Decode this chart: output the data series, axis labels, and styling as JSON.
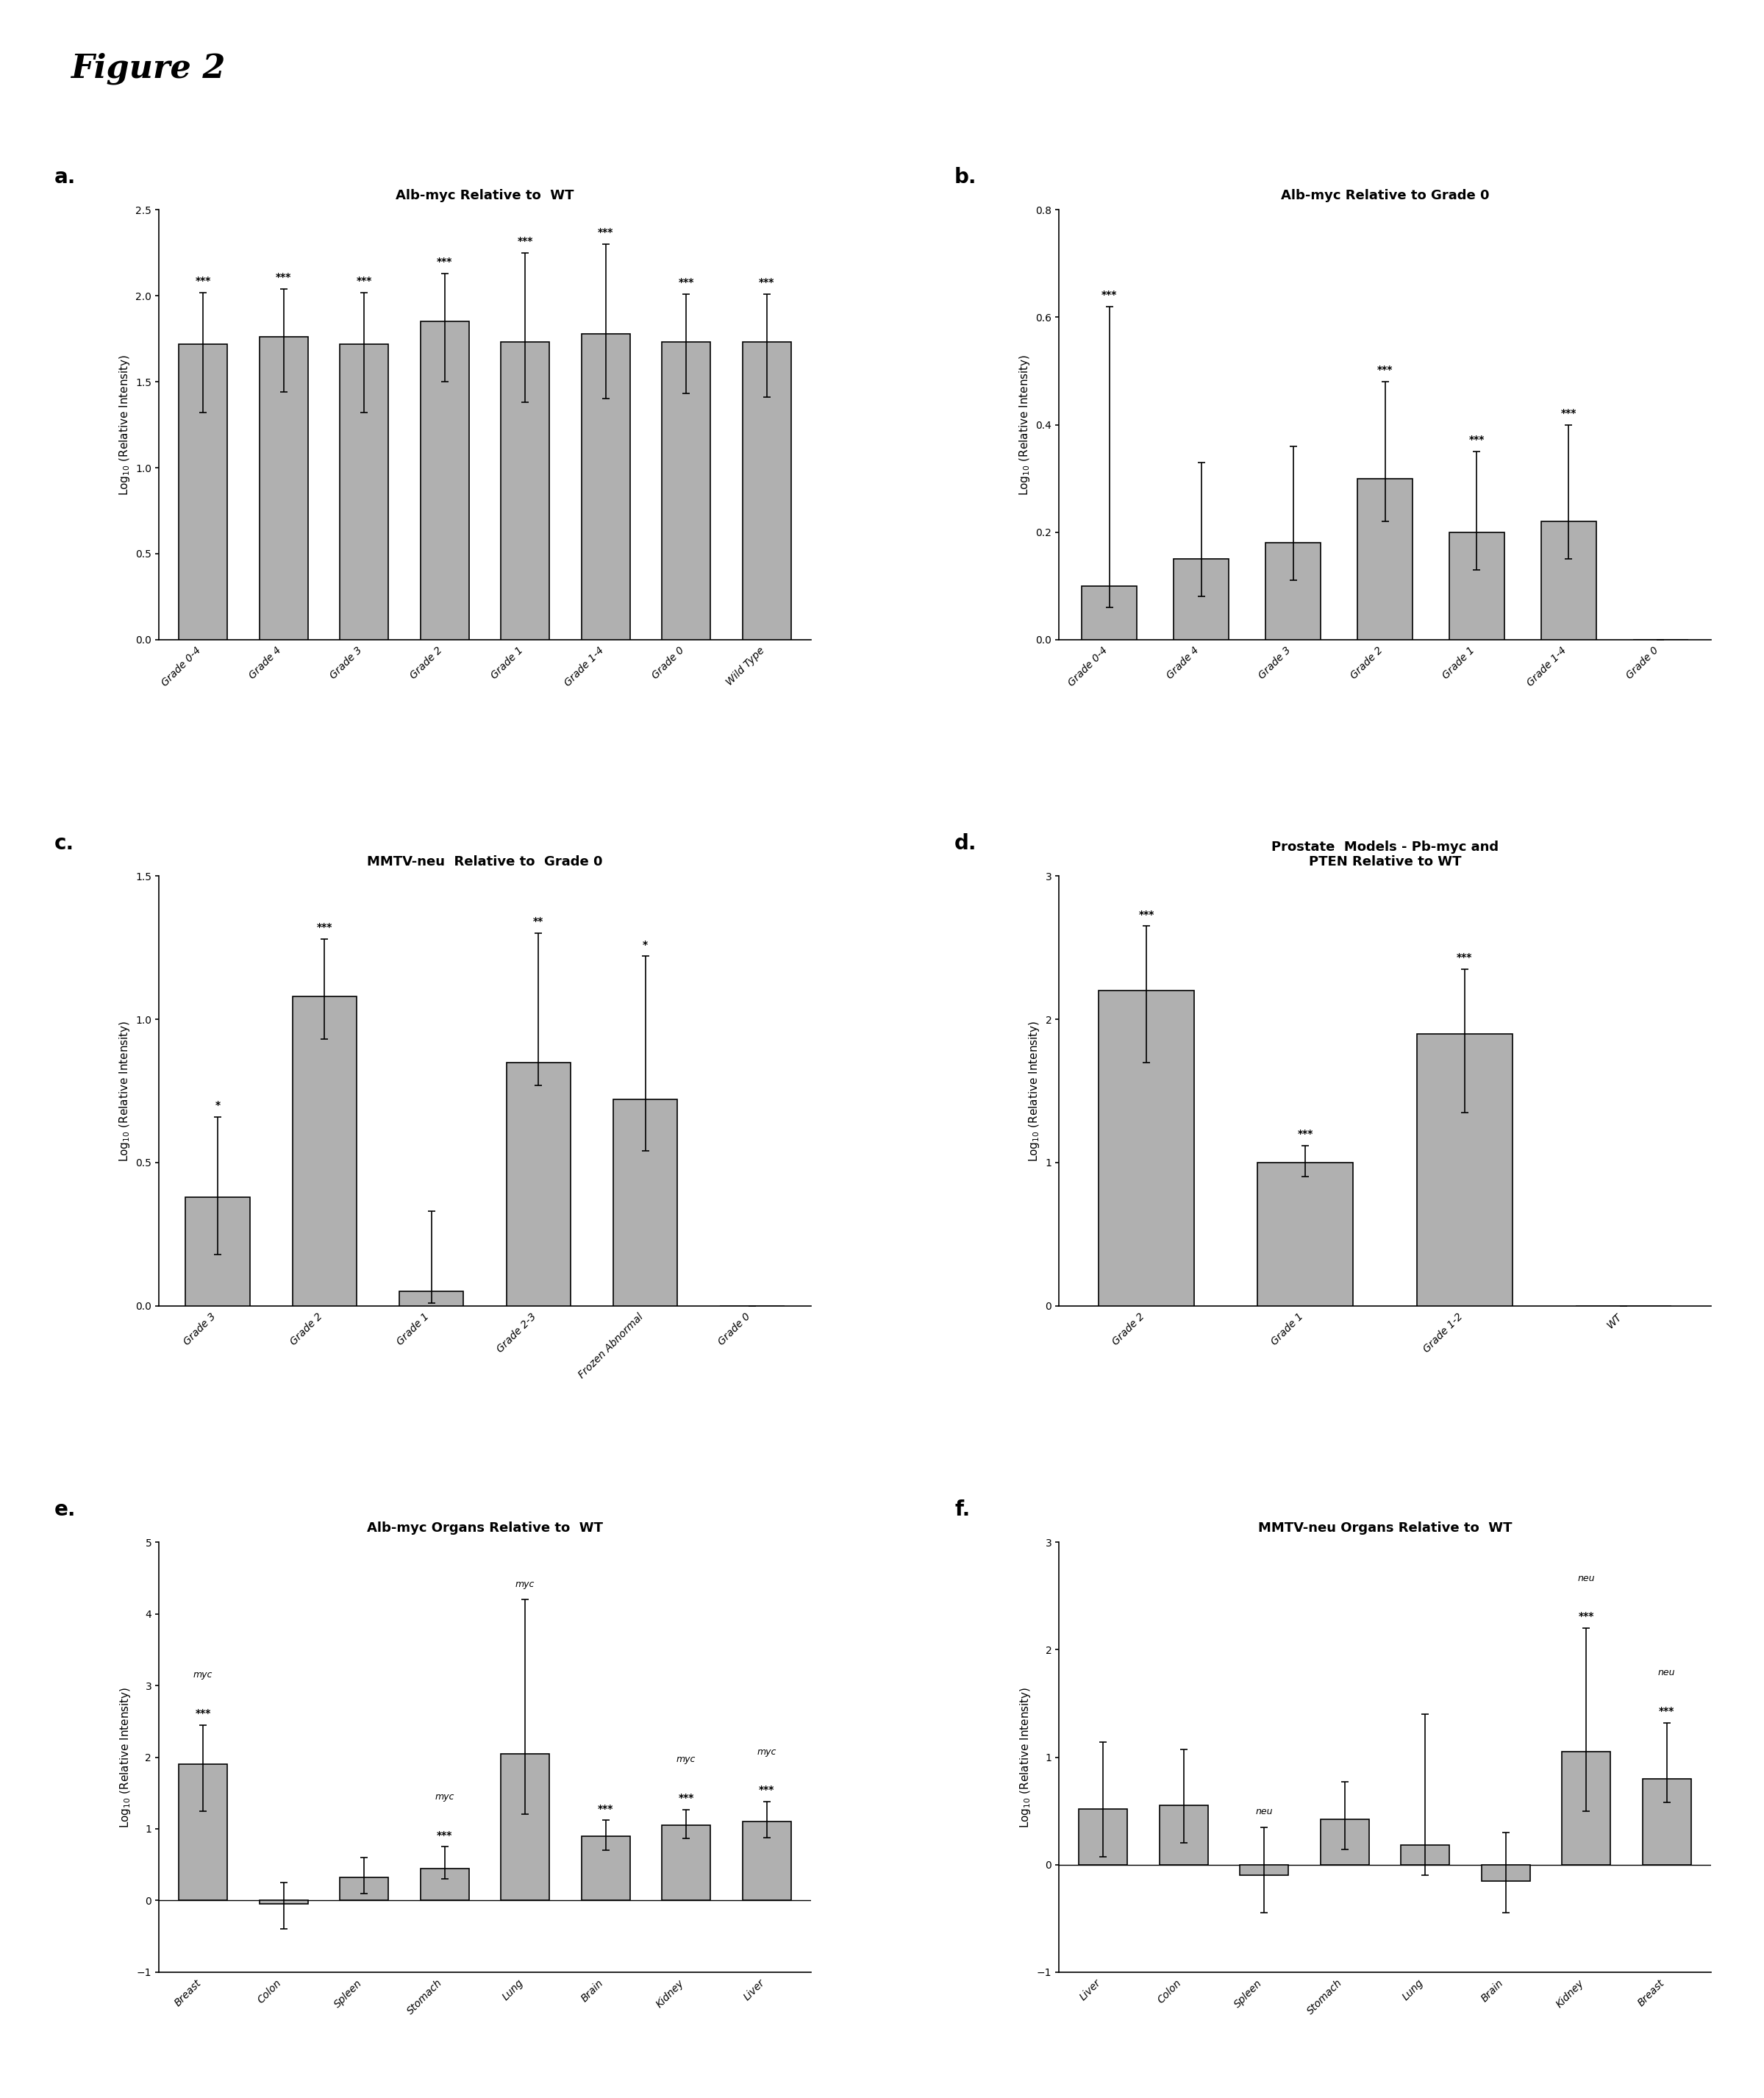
{
  "fig_title": "Figure 2",
  "bar_color": "#b0b0b0",
  "bar_edge_color": "#000000",
  "background_color": "#ffffff",
  "plot_a": {
    "title": "Alb-myc Relative to  WT",
    "ylabel": "Log$_{10}$ (Relative Intensity)",
    "categories": [
      "Grade 0-4",
      "Grade 4",
      "Grade 3",
      "Grade 2",
      "Grade 1",
      "Grade 1-4",
      "Grade 0",
      "Wild Type"
    ],
    "values": [
      1.72,
      1.76,
      1.72,
      1.85,
      1.73,
      1.78,
      1.73,
      1.73
    ],
    "errors_low": [
      0.4,
      0.32,
      0.4,
      0.35,
      0.35,
      0.38,
      0.3,
      0.32
    ],
    "errors_high": [
      0.3,
      0.28,
      0.3,
      0.28,
      0.52,
      0.52,
      0.28,
      0.28
    ],
    "sig_labels": [
      "***",
      "***",
      "***",
      "***",
      "***",
      "***",
      "***",
      "***"
    ],
    "ylim": [
      0.0,
      2.5
    ],
    "yticks": [
      0.0,
      0.5,
      1.0,
      1.5,
      2.0,
      2.5
    ]
  },
  "plot_b": {
    "title": "Alb-myc Relative to Grade 0",
    "ylabel": "Log$_{10}$ (Relative Intensity)",
    "categories": [
      "Grade 0-4",
      "Grade 4",
      "Grade 3",
      "Grade 2",
      "Grade 1",
      "Grade 1-4",
      "Grade 0"
    ],
    "values": [
      0.1,
      0.15,
      0.18,
      0.3,
      0.2,
      0.22,
      0.0
    ],
    "errors_low": [
      0.04,
      0.07,
      0.07,
      0.08,
      0.07,
      0.07,
      0.0
    ],
    "errors_high": [
      0.52,
      0.18,
      0.18,
      0.18,
      0.15,
      0.18,
      0.0
    ],
    "sig_labels": [
      "***",
      "",
      "",
      "***",
      "***",
      "***",
      ""
    ],
    "ylim": [
      0.0,
      0.8
    ],
    "yticks": [
      0.0,
      0.2,
      0.4,
      0.6,
      0.8
    ]
  },
  "plot_c": {
    "title": "MMTV-neu  Relative to  Grade 0",
    "ylabel": "Log$_{10}$ (Relative Intensity)",
    "categories": [
      "Grade 3",
      "Grade 2",
      "Grade 1",
      "Grade 2-3",
      "Frozen Abnormal",
      "Grade 0"
    ],
    "values": [
      0.38,
      1.08,
      0.05,
      0.85,
      0.72,
      0.0
    ],
    "errors_low": [
      0.2,
      0.15,
      0.04,
      0.08,
      0.18,
      0.0
    ],
    "errors_high": [
      0.28,
      0.2,
      0.28,
      0.45,
      0.5,
      0.0
    ],
    "sig_labels": [
      "*",
      "***",
      "",
      "**",
      "*",
      ""
    ],
    "ylim": [
      0.0,
      1.5
    ],
    "yticks": [
      0.0,
      0.5,
      1.0,
      1.5
    ]
  },
  "plot_d": {
    "title": "Prostate  Models - Pb-myc and\nPTEN Relative to WT",
    "ylabel": "Log$_{10}$ (Relative Intensity)",
    "categories": [
      "Grade 2",
      "Grade 1",
      "Grade 1-2",
      "WT"
    ],
    "values": [
      2.2,
      1.0,
      1.9,
      0.0
    ],
    "errors_low": [
      0.5,
      0.1,
      0.55,
      0.0
    ],
    "errors_high": [
      0.45,
      0.12,
      0.45,
      0.0
    ],
    "sig_labels": [
      "***",
      "***",
      "***",
      ""
    ],
    "ylim": [
      0.0,
      3.0
    ],
    "yticks": [
      0.0,
      1.0,
      2.0,
      3.0
    ]
  },
  "plot_e": {
    "title": "Alb-myc Organs Relative to  WT",
    "ylabel": "Log$_{10}$ (Relative Intensity)",
    "categories": [
      "Breast",
      "Colon",
      "Spleen",
      "Stomach",
      "Lung",
      "Brain",
      "Kidney",
      "Liver"
    ],
    "values": [
      1.9,
      -0.05,
      0.32,
      0.45,
      2.05,
      0.9,
      1.05,
      1.1
    ],
    "errors_low": [
      0.65,
      0.35,
      0.22,
      0.15,
      0.85,
      0.2,
      0.18,
      0.22
    ],
    "errors_high": [
      0.55,
      0.3,
      0.28,
      0.3,
      2.15,
      0.22,
      0.22,
      0.28
    ],
    "sig_labels": [
      "***",
      "",
      "",
      "***",
      "",
      "***",
      "***",
      "***"
    ],
    "extra_labels": [
      "myc",
      "",
      "",
      "myc",
      "myc",
      "",
      "myc",
      "myc"
    ],
    "ylim": [
      -1.0,
      5.0
    ],
    "yticks": [
      -1.0,
      0.0,
      1.0,
      2.0,
      3.0,
      4.0,
      5.0
    ]
  },
  "plot_f": {
    "title": "MMTV-neu Organs Relative to  WT",
    "ylabel": "Log$_{10}$ (Relative Intensity)",
    "categories": [
      "Liver",
      "Colon",
      "Spleen",
      "Stomach",
      "Lung",
      "Brain",
      "Kidney",
      "Breast"
    ],
    "values": [
      0.52,
      0.55,
      -0.1,
      0.42,
      0.18,
      -0.15,
      1.05,
      0.8
    ],
    "errors_low": [
      0.45,
      0.35,
      0.35,
      0.28,
      0.28,
      0.3,
      0.55,
      0.22
    ],
    "errors_high": [
      0.62,
      0.52,
      0.45,
      0.35,
      1.22,
      0.45,
      1.15,
      0.52
    ],
    "sig_labels": [
      "",
      "",
      "",
      "",
      "",
      "",
      "***",
      "***"
    ],
    "extra_labels": [
      "",
      "",
      "neu",
      "",
      "",
      "",
      "neu",
      "neu"
    ],
    "ylim": [
      -1.0,
      3.0
    ],
    "yticks": [
      -1.0,
      0.0,
      1.0,
      2.0,
      3.0
    ]
  }
}
